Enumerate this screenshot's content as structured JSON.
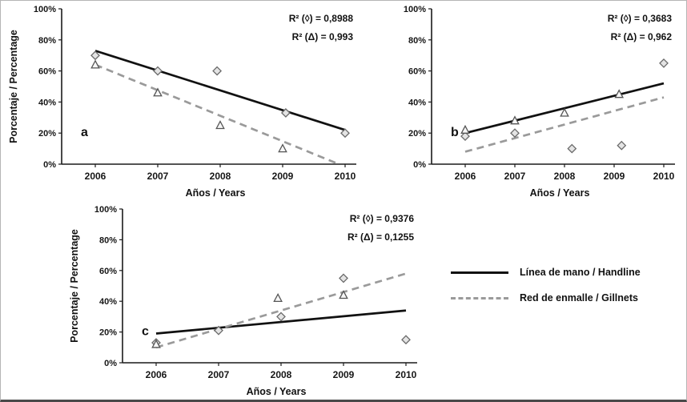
{
  "figure": {
    "ylabel": "Porcentaje / Percentage",
    "xlabel": "Años / Years"
  },
  "legend": {
    "items": [
      {
        "label": "Línea de mano / Handline",
        "line": "solid",
        "color": "#111111"
      },
      {
        "label": "Red de enmalle / Gillnets",
        "line": "dashed",
        "color": "#9a9a9a"
      }
    ]
  },
  "chart_data": [
    {
      "id": "a",
      "type": "scatter",
      "panel_label": "a",
      "xlabel": "Años / Years",
      "ylabel": "Porcentaje / Percentage",
      "x_ticks": [
        "2006",
        "2007",
        "2008",
        "2009",
        "2010"
      ],
      "y_tick_labels": [
        "0%",
        "20%",
        "40%",
        "60%",
        "80%",
        "100%"
      ],
      "ylim": [
        0,
        100
      ],
      "grid": false,
      "annotations": [
        "R² (◊) = 0,8988",
        "R² (Δ) = 0,993"
      ],
      "series": [
        {
          "name": "Línea de mano / Handline",
          "marker": "diamond",
          "line_style": "solid",
          "color": "#111111",
          "points": [
            [
              2006,
              70
            ],
            [
              2007,
              60
            ],
            [
              2007.95,
              60
            ],
            [
              2009.05,
              33
            ],
            [
              2010,
              20
            ]
          ],
          "trend": [
            [
              2006,
              73
            ],
            [
              2010,
              22
            ]
          ]
        },
        {
          "name": "Red de enmalle / Gillnets",
          "marker": "triangle",
          "line_style": "dashed",
          "color": "#9a9a9a",
          "points": [
            [
              2006,
              64
            ],
            [
              2007,
              46
            ],
            [
              2008,
              25
            ],
            [
              2009,
              10
            ]
          ],
          "trend": [
            [
              2006,
              64
            ],
            [
              2009.9,
              0
            ]
          ]
        }
      ]
    },
    {
      "id": "b",
      "type": "scatter",
      "panel_label": "b",
      "xlabel": "Años / Years",
      "ylabel": "",
      "x_ticks": [
        "2006",
        "2007",
        "2008",
        "2009",
        "2010"
      ],
      "y_tick_labels": [
        "0%",
        "20%",
        "40%",
        "60%",
        "80%",
        "100%"
      ],
      "ylim": [
        0,
        100
      ],
      "grid": false,
      "annotations": [
        "R² (◊) = 0,3683",
        "R² (Δ) = 0,962"
      ],
      "series": [
        {
          "name": "Línea de mano / Handline",
          "marker": "diamond",
          "line_style": "solid",
          "color": "#111111",
          "points": [
            [
              2006,
              18
            ],
            [
              2007,
              20
            ],
            [
              2008.15,
              10
            ],
            [
              2009.15,
              12
            ],
            [
              2010,
              65
            ]
          ],
          "trend": [
            [
              2006,
              20
            ],
            [
              2010,
              52
            ]
          ]
        },
        {
          "name": "Red de enmalle / Gillnets",
          "marker": "triangle",
          "line_style": "dashed",
          "color": "#9a9a9a",
          "points": [
            [
              2006,
              22
            ],
            [
              2007,
              28
            ],
            [
              2008,
              33
            ],
            [
              2009.1,
              45
            ]
          ],
          "trend": [
            [
              2006,
              8
            ],
            [
              2010,
              43
            ]
          ]
        }
      ]
    },
    {
      "id": "c",
      "type": "scatter",
      "panel_label": "c",
      "xlabel": "Años / Years",
      "ylabel": "Porcentaje / Percentage",
      "x_ticks": [
        "2006",
        "2007",
        "2008",
        "2009",
        "2010"
      ],
      "y_tick_labels": [
        "0%",
        "20%",
        "40%",
        "60%",
        "80%",
        "100%"
      ],
      "ylim": [
        0,
        100
      ],
      "grid": false,
      "annotations": [
        "R² (◊) = 0,9376",
        "R² (Δ) = 0,1255"
      ],
      "series": [
        {
          "name": "Línea de mano / Handline",
          "marker": "diamond",
          "line_style": "solid",
          "color": "#111111",
          "points": [
            [
              2006,
              13
            ],
            [
              2007,
              21
            ],
            [
              2008,
              30
            ],
            [
              2009,
              55
            ],
            [
              2010,
              15
            ]
          ],
          "trend": [
            [
              2006,
              19
            ],
            [
              2010,
              34
            ]
          ]
        },
        {
          "name": "Red de enmalle / Gillnets",
          "marker": "triangle",
          "line_style": "dashed",
          "color": "#9a9a9a",
          "points": [
            [
              2006,
              12
            ],
            [
              2007.95,
              42
            ],
            [
              2009,
              44
            ]
          ],
          "trend": [
            [
              2006,
              10
            ],
            [
              2010,
              58
            ]
          ]
        }
      ]
    }
  ]
}
